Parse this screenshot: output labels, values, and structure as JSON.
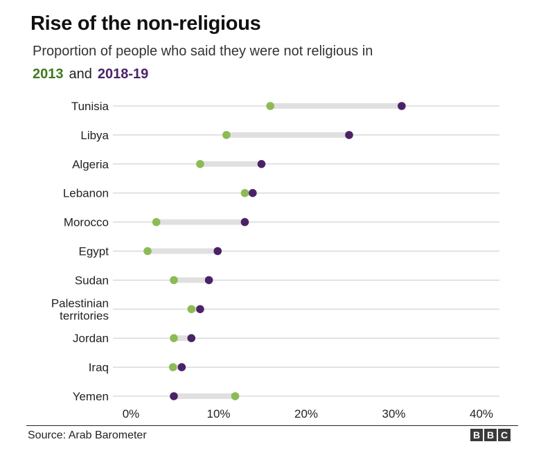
{
  "title": "Rise of the non-religious",
  "subtitle": "Proportion of people who said they were not religious in",
  "legend": {
    "series_a": "2013",
    "connector": "and",
    "series_b": "2018-19"
  },
  "source": "Source: Arab Barometer",
  "logo": [
    "B",
    "B",
    "C"
  ],
  "colors": {
    "series_a": "#8dba55",
    "series_b": "#4b2267",
    "legend_a_text": "#3e7a1e",
    "legend_b_text": "#4b2267",
    "gridline": "#c8c8c8",
    "range_bar": "#e0e0e0"
  },
  "chart_data": {
    "type": "dumbbell",
    "xlim": [
      0,
      40
    ],
    "x_ticks": [
      "0%",
      "10%",
      "20%",
      "30%",
      "40%"
    ],
    "x_tick_values": [
      0,
      10,
      20,
      30,
      40
    ],
    "categories": [
      [
        "Tunisia"
      ],
      [
        "Libya"
      ],
      [
        "Algeria"
      ],
      [
        "Lebanon"
      ],
      [
        "Morocco"
      ],
      [
        "Egypt"
      ],
      [
        "Sudan"
      ],
      [
        "Palestinian",
        "territories"
      ],
      [
        "Jordan"
      ],
      [
        "Iraq"
      ],
      [
        "Yemen"
      ]
    ],
    "series": [
      {
        "name": "2013",
        "values": [
          15.9,
          10.9,
          7.9,
          13.0,
          2.9,
          1.9,
          4.9,
          6.9,
          4.9,
          4.8,
          11.9
        ]
      },
      {
        "name": "2018-19",
        "values": [
          30.9,
          24.9,
          14.9,
          13.9,
          13.0,
          9.9,
          8.9,
          7.9,
          6.9,
          5.8,
          4.9
        ]
      }
    ]
  }
}
